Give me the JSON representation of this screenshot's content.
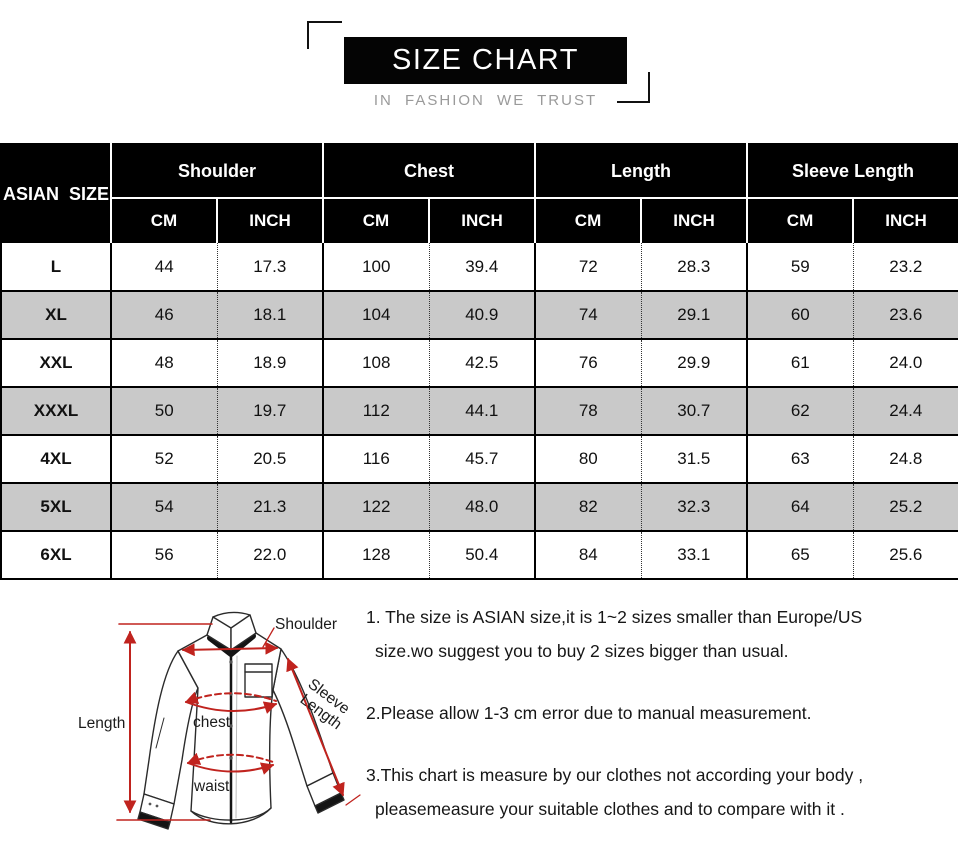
{
  "header": {
    "title": "SIZE CHART",
    "tagline": "IN FASHION WE TRUST"
  },
  "table": {
    "corner_label": "ASIAN SIZE",
    "groups": [
      {
        "label": "Shoulder"
      },
      {
        "label": "Chest"
      },
      {
        "label": "Length"
      },
      {
        "label": "Sleeve Length"
      }
    ],
    "unit_headers": [
      "CM",
      "INCH"
    ],
    "rows": [
      {
        "size": "L",
        "values": [
          "44",
          "17.3",
          "100",
          "39.4",
          "72",
          "28.3",
          "59",
          "23.2"
        ]
      },
      {
        "size": "XL",
        "values": [
          "46",
          "18.1",
          "104",
          "40.9",
          "74",
          "29.1",
          "60",
          "23.6"
        ]
      },
      {
        "size": "XXL",
        "values": [
          "48",
          "18.9",
          "108",
          "42.5",
          "76",
          "29.9",
          "61",
          "24.0"
        ]
      },
      {
        "size": "XXXL",
        "values": [
          "50",
          "19.7",
          "112",
          "44.1",
          "78",
          "30.7",
          "62",
          "24.4"
        ]
      },
      {
        "size": "4XL",
        "values": [
          "52",
          "20.5",
          "116",
          "45.7",
          "80",
          "31.5",
          "63",
          "24.8"
        ]
      },
      {
        "size": "5XL",
        "values": [
          "54",
          "21.3",
          "122",
          "48.0",
          "82",
          "32.3",
          "64",
          "25.2"
        ]
      },
      {
        "size": "6XL",
        "values": [
          "56",
          "22.0",
          "128",
          "50.4",
          "84",
          "33.1",
          "65",
          "25.6"
        ]
      }
    ]
  },
  "chart_data": {
    "type": "table",
    "title": "SIZE CHART",
    "columns": [
      "ASIAN SIZE",
      "Shoulder CM",
      "Shoulder INCH",
      "Chest CM",
      "Chest INCH",
      "Length CM",
      "Length INCH",
      "Sleeve Length CM",
      "Sleeve Length INCH"
    ],
    "rows": [
      [
        "L",
        44,
        17.3,
        100,
        39.4,
        72,
        28.3,
        59,
        23.2
      ],
      [
        "XL",
        46,
        18.1,
        104,
        40.9,
        74,
        29.1,
        60,
        23.6
      ],
      [
        "XXL",
        48,
        18.9,
        108,
        42.5,
        76,
        29.9,
        61,
        24.0
      ],
      [
        "XXXL",
        50,
        19.7,
        112,
        44.1,
        78,
        30.7,
        62,
        24.4
      ],
      [
        "4XL",
        52,
        20.5,
        116,
        45.7,
        80,
        31.5,
        63,
        24.8
      ],
      [
        "5XL",
        54,
        21.3,
        122,
        48.0,
        82,
        32.3,
        64,
        25.2
      ],
      [
        "6XL",
        56,
        22.0,
        128,
        50.4,
        84,
        33.1,
        65,
        25.6
      ]
    ]
  },
  "diagram": {
    "length_label": "Length",
    "shoulder_label": "Shoulder",
    "sleeve_label_line1": "Sleeve",
    "sleeve_label_line2": "Length",
    "chest_label": "chest",
    "waist_label": "waist"
  },
  "notes": [
    {
      "line1": "1. The size is ASIAN size,it is 1~2 sizes smaller than Europe/US",
      "line2": "size.wo suggest you to buy 2 sizes bigger than usual."
    },
    {
      "line1": "2.Please allow 1-3 cm error due to manual measurement.",
      "line2": ""
    },
    {
      "line1": "3.This chart is measure by our clothes not according your body ,",
      "line2": "pleasemeasure your suitable clothes and to compare with it ."
    }
  ],
  "colors": {
    "accent_red": "#c0231e",
    "header_bg": "#000000",
    "row_alt": "#c9c9c9",
    "tagline_gray": "#9a9a9a"
  }
}
